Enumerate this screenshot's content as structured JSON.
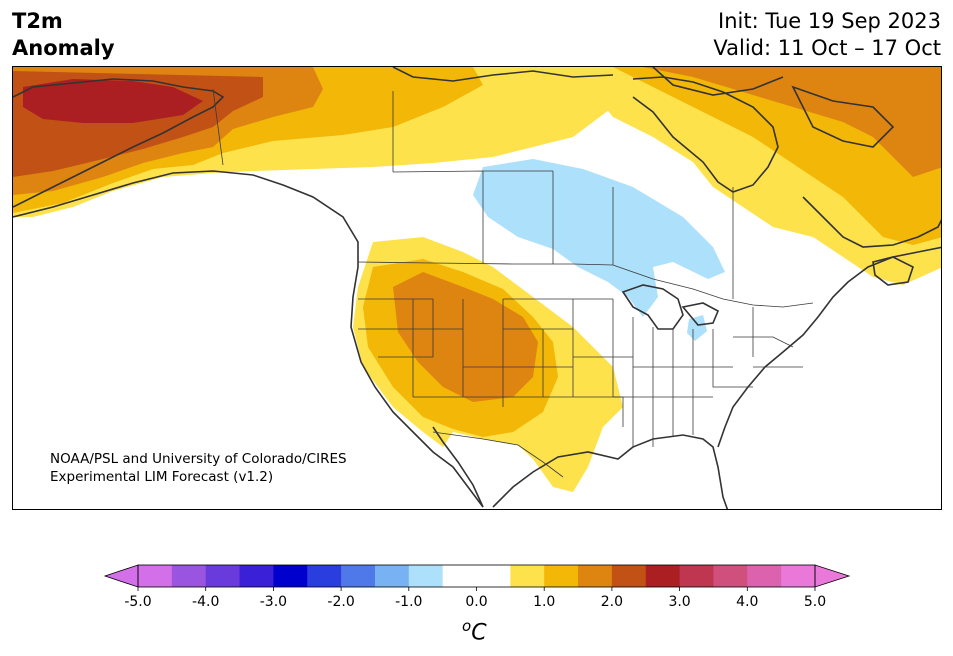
{
  "title": {
    "left_line1": "T2m",
    "left_line2": "Anomaly",
    "right_line1": "Init: Tue 19 Sep 2023",
    "right_line2": "Valid: 11 Oct – 17 Oct"
  },
  "credit": {
    "line1": "NOAA/PSL and University of Colorado/CIRES",
    "line2": "Experimental LIM Forecast (v1.2)"
  },
  "colorbar": {
    "unit_sup": "o",
    "unit_base": "C",
    "tick_labels": [
      "-5.0",
      "-4.0",
      "-3.0",
      "-2.0",
      "-1.0",
      "0.0",
      "1.0",
      "2.0",
      "3.0",
      "4.0",
      "5.0"
    ],
    "colors": [
      "#d36fe8",
      "#9a55e0",
      "#6a3bdc",
      "#3a20d6",
      "#0000cc",
      "#2a3ee0",
      "#4f78e8",
      "#78b2f2",
      "#ade0fb",
      "#ffffff",
      "#ffffff",
      "#fde24c",
      "#f2b707",
      "#de8411",
      "#c25116",
      "#ab1f22",
      "#bf3650",
      "#cf4f7d",
      "#dc62ad",
      "#ea78d8"
    ],
    "under_color": "#d36fe8",
    "over_color": "#ea78d8"
  },
  "map": {
    "region": "North America",
    "variable": "2m temperature anomaly",
    "colors": {
      "ocean": "#ffffff",
      "coast": "#333333",
      "border": "#3a3a3a",
      "warm1": "#fde24c",
      "warm2": "#f2b707",
      "warm3": "#de8411",
      "warm4": "#c25116",
      "warm5": "#ab1f22",
      "cool1": "#ade0fb"
    }
  }
}
